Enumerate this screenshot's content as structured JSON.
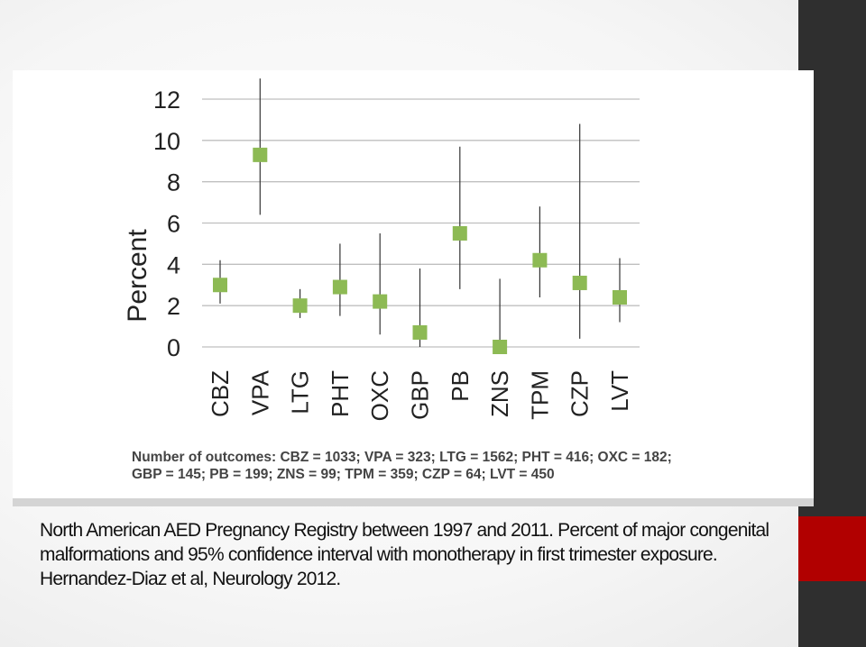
{
  "caption": {
    "line1": "North American AED Pregnancy Registry between 1997 and 2011. Percent of major congenital",
    "line2": "malformations and 95% confidence interval with monotherapy in first trimester exposure.",
    "line3": "Hernandez-Diaz et al, Neurology 2012."
  },
  "colors": {
    "marker": "#8dba54",
    "whisker": "#333333",
    "grid": "#bfbfbf",
    "side_bar": "#2f2f2f",
    "side_accent": "#b10000"
  },
  "chart_data": {
    "type": "scatter",
    "title": "",
    "xlabel": "",
    "ylabel": "Percent",
    "ylim": [
      0,
      12
    ],
    "yticks": [
      0,
      2,
      4,
      6,
      8,
      10,
      12
    ],
    "grid": true,
    "categories": [
      "CBZ",
      "VPA",
      "LTG",
      "PHT",
      "OXC",
      "GBP",
      "PB",
      "ZNS",
      "TPM",
      "CZP",
      "LVT"
    ],
    "values": [
      3.0,
      9.3,
      2.0,
      2.9,
      2.2,
      0.7,
      5.5,
      0.0,
      4.2,
      3.1,
      2.4
    ],
    "ci_low": [
      2.1,
      6.4,
      1.4,
      1.5,
      0.6,
      0.0,
      2.8,
      0.0,
      2.4,
      0.4,
      1.2
    ],
    "ci_high": [
      4.2,
      13.0,
      2.8,
      5.0,
      5.5,
      3.8,
      9.7,
      3.3,
      6.8,
      10.8,
      4.3
    ],
    "footnote_line1": "Number of outcomes: CBZ = 1033; VPA = 323; LTG = 1562; PHT = 416; OXC = 182;",
    "footnote_line2": "GBP = 145; PB = 199; ZNS = 99; TPM = 359; CZP = 64; LVT = 450"
  }
}
